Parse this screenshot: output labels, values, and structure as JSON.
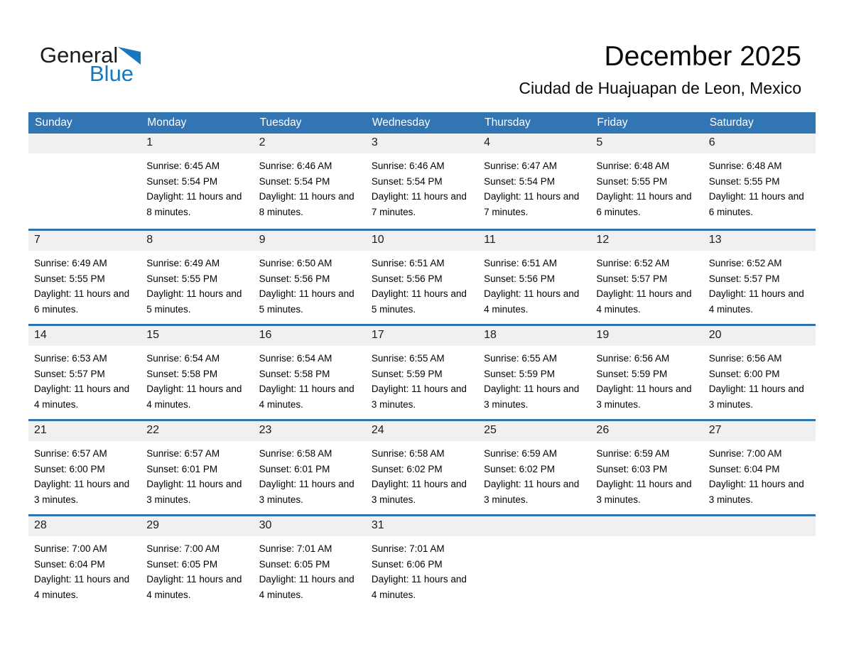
{
  "logo": {
    "general": "General",
    "blue": "Blue"
  },
  "header": {
    "title": "December 2025",
    "subtitle": "Ciudad de Huajuapan de Leon, Mexico"
  },
  "colors": {
    "header_bg": "#3275b4",
    "divider": "#2e73b2",
    "band_bg": "#f0f0f0",
    "logo_blue": "#1878be"
  },
  "calendar": {
    "weekdays": [
      "Sunday",
      "Monday",
      "Tuesday",
      "Wednesday",
      "Thursday",
      "Friday",
      "Saturday"
    ],
    "weeks": [
      [
        null,
        {
          "day": "1",
          "sunrise": "Sunrise: 6:45 AM",
          "sunset": "Sunset: 5:54 PM",
          "daylight": "Daylight: 11 hours and 8 minutes."
        },
        {
          "day": "2",
          "sunrise": "Sunrise: 6:46 AM",
          "sunset": "Sunset: 5:54 PM",
          "daylight": "Daylight: 11 hours and 8 minutes."
        },
        {
          "day": "3",
          "sunrise": "Sunrise: 6:46 AM",
          "sunset": "Sunset: 5:54 PM",
          "daylight": "Daylight: 11 hours and 7 minutes."
        },
        {
          "day": "4",
          "sunrise": "Sunrise: 6:47 AM",
          "sunset": "Sunset: 5:54 PM",
          "daylight": "Daylight: 11 hours and 7 minutes."
        },
        {
          "day": "5",
          "sunrise": "Sunrise: 6:48 AM",
          "sunset": "Sunset: 5:55 PM",
          "daylight": "Daylight: 11 hours and 6 minutes."
        },
        {
          "day": "6",
          "sunrise": "Sunrise: 6:48 AM",
          "sunset": "Sunset: 5:55 PM",
          "daylight": "Daylight: 11 hours and 6 minutes."
        }
      ],
      [
        {
          "day": "7",
          "sunrise": "Sunrise: 6:49 AM",
          "sunset": "Sunset: 5:55 PM",
          "daylight": "Daylight: 11 hours and 6 minutes."
        },
        {
          "day": "8",
          "sunrise": "Sunrise: 6:49 AM",
          "sunset": "Sunset: 5:55 PM",
          "daylight": "Daylight: 11 hours and 5 minutes."
        },
        {
          "day": "9",
          "sunrise": "Sunrise: 6:50 AM",
          "sunset": "Sunset: 5:56 PM",
          "daylight": "Daylight: 11 hours and 5 minutes."
        },
        {
          "day": "10",
          "sunrise": "Sunrise: 6:51 AM",
          "sunset": "Sunset: 5:56 PM",
          "daylight": "Daylight: 11 hours and 5 minutes."
        },
        {
          "day": "11",
          "sunrise": "Sunrise: 6:51 AM",
          "sunset": "Sunset: 5:56 PM",
          "daylight": "Daylight: 11 hours and 4 minutes."
        },
        {
          "day": "12",
          "sunrise": "Sunrise: 6:52 AM",
          "sunset": "Sunset: 5:57 PM",
          "daylight": "Daylight: 11 hours and 4 minutes."
        },
        {
          "day": "13",
          "sunrise": "Sunrise: 6:52 AM",
          "sunset": "Sunset: 5:57 PM",
          "daylight": "Daylight: 11 hours and 4 minutes."
        }
      ],
      [
        {
          "day": "14",
          "sunrise": "Sunrise: 6:53 AM",
          "sunset": "Sunset: 5:57 PM",
          "daylight": "Daylight: 11 hours and 4 minutes."
        },
        {
          "day": "15",
          "sunrise": "Sunrise: 6:54 AM",
          "sunset": "Sunset: 5:58 PM",
          "daylight": "Daylight: 11 hours and 4 minutes."
        },
        {
          "day": "16",
          "sunrise": "Sunrise: 6:54 AM",
          "sunset": "Sunset: 5:58 PM",
          "daylight": "Daylight: 11 hours and 4 minutes."
        },
        {
          "day": "17",
          "sunrise": "Sunrise: 6:55 AM",
          "sunset": "Sunset: 5:59 PM",
          "daylight": "Daylight: 11 hours and 3 minutes."
        },
        {
          "day": "18",
          "sunrise": "Sunrise: 6:55 AM",
          "sunset": "Sunset: 5:59 PM",
          "daylight": "Daylight: 11 hours and 3 minutes."
        },
        {
          "day": "19",
          "sunrise": "Sunrise: 6:56 AM",
          "sunset": "Sunset: 5:59 PM",
          "daylight": "Daylight: 11 hours and 3 minutes."
        },
        {
          "day": "20",
          "sunrise": "Sunrise: 6:56 AM",
          "sunset": "Sunset: 6:00 PM",
          "daylight": "Daylight: 11 hours and 3 minutes."
        }
      ],
      [
        {
          "day": "21",
          "sunrise": "Sunrise: 6:57 AM",
          "sunset": "Sunset: 6:00 PM",
          "daylight": "Daylight: 11 hours and 3 minutes."
        },
        {
          "day": "22",
          "sunrise": "Sunrise: 6:57 AM",
          "sunset": "Sunset: 6:01 PM",
          "daylight": "Daylight: 11 hours and 3 minutes."
        },
        {
          "day": "23",
          "sunrise": "Sunrise: 6:58 AM",
          "sunset": "Sunset: 6:01 PM",
          "daylight": "Daylight: 11 hours and 3 minutes."
        },
        {
          "day": "24",
          "sunrise": "Sunrise: 6:58 AM",
          "sunset": "Sunset: 6:02 PM",
          "daylight": "Daylight: 11 hours and 3 minutes."
        },
        {
          "day": "25",
          "sunrise": "Sunrise: 6:59 AM",
          "sunset": "Sunset: 6:02 PM",
          "daylight": "Daylight: 11 hours and 3 minutes."
        },
        {
          "day": "26",
          "sunrise": "Sunrise: 6:59 AM",
          "sunset": "Sunset: 6:03 PM",
          "daylight": "Daylight: 11 hours and 3 minutes."
        },
        {
          "day": "27",
          "sunrise": "Sunrise: 7:00 AM",
          "sunset": "Sunset: 6:04 PM",
          "daylight": "Daylight: 11 hours and 3 minutes."
        }
      ],
      [
        {
          "day": "28",
          "sunrise": "Sunrise: 7:00 AM",
          "sunset": "Sunset: 6:04 PM",
          "daylight": "Daylight: 11 hours and 4 minutes."
        },
        {
          "day": "29",
          "sunrise": "Sunrise: 7:00 AM",
          "sunset": "Sunset: 6:05 PM",
          "daylight": "Daylight: 11 hours and 4 minutes."
        },
        {
          "day": "30",
          "sunrise": "Sunrise: 7:01 AM",
          "sunset": "Sunset: 6:05 PM",
          "daylight": "Daylight: 11 hours and 4 minutes."
        },
        {
          "day": "31",
          "sunrise": "Sunrise: 7:01 AM",
          "sunset": "Sunset: 6:06 PM",
          "daylight": "Daylight: 11 hours and 4 minutes."
        },
        null,
        null,
        null
      ]
    ]
  }
}
